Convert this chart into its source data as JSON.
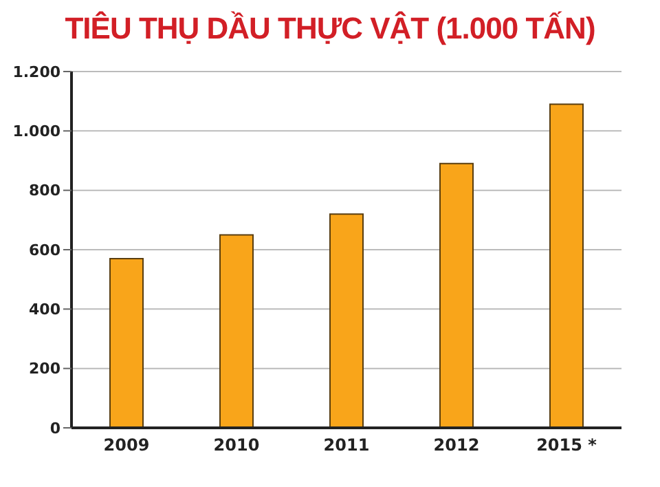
{
  "chart_data": {
    "type": "bar",
    "title": "TIÊU THỤ DẦU THỰC VẬT (1.000 TẤN)",
    "categories": [
      "2009",
      "2010",
      "2011",
      "2012",
      "2015 *"
    ],
    "values": [
      570,
      650,
      720,
      890,
      1090
    ],
    "color": "#f9a51a",
    "ylim": [
      0,
      1200
    ],
    "yticks": [
      0,
      200,
      400,
      600,
      800,
      {
        "value": 1000,
        "label": "1.000"
      },
      {
        "value": 1200,
        "label": "1.200"
      }
    ],
    "grid": "y"
  }
}
